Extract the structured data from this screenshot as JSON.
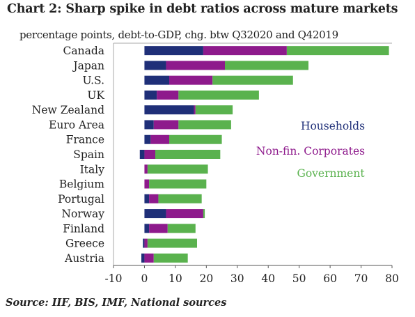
{
  "title": "Chart 2: Sharp spike in debt ratios across mature markets",
  "subtitle": "percentage points, debt-to-GDP, chg. btw Q32020 and Q42019",
  "source": "Source: IIF, BIS, IMF, National sources",
  "chart_data": {
    "type": "bar",
    "orientation": "horizontal",
    "stacked": true,
    "categories": [
      "Canada",
      "Japan",
      "U.S.",
      "UK",
      "New Zealand",
      "Euro Area",
      "France",
      "Spain",
      "Italy",
      "Belgium",
      "Portugal",
      "Norway",
      "Finland",
      "Greece",
      "Austria"
    ],
    "series": [
      {
        "name": "Households",
        "color": "#1f2f78",
        "values": [
          19,
          7,
          8,
          4,
          16,
          3,
          2,
          -1.5,
          0,
          0,
          1.5,
          7,
          1.5,
          -0.5,
          -1
        ]
      },
      {
        "name": "Non-fin. Corporates",
        "color": "#8e1a8c",
        "values": [
          27,
          19,
          14,
          7,
          0.5,
          8,
          6,
          3.5,
          1,
          1.5,
          3,
          12,
          6,
          1,
          3
        ]
      },
      {
        "name": "Government",
        "color": "#5ab24e",
        "values": [
          33,
          27,
          26,
          26,
          12,
          17,
          17,
          21,
          19.5,
          18.5,
          14,
          0.5,
          9,
          16,
          11
        ]
      }
    ],
    "xlim": [
      -10,
      80
    ],
    "xticks": [
      -10,
      0,
      10,
      20,
      30,
      40,
      50,
      60,
      70,
      80
    ],
    "legend_position": "right",
    "grid": false
  }
}
